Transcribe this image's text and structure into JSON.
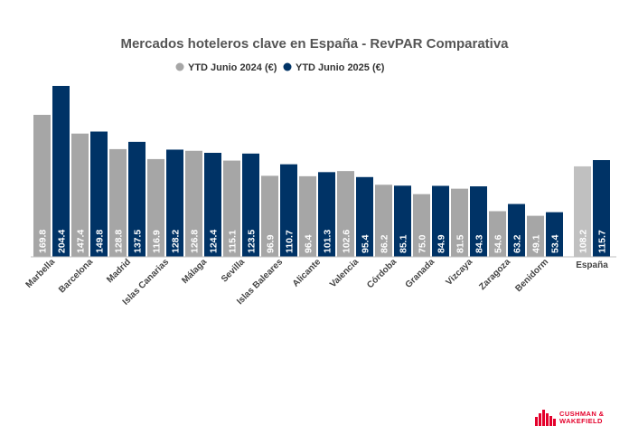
{
  "chart_data": {
    "type": "bar",
    "title": "Mercados hoteleros clave en España - RevPAR Comparativa",
    "categories": [
      "Marbella",
      "Barcelona",
      "Madrid",
      "Islas Canarias",
      "Málaga",
      "Sevilla",
      "Islas Baleares",
      "Alicante",
      "Valencia",
      "Córdoba",
      "Granada",
      "Vizcaya",
      "Zaragoza",
      "Benidorm",
      "España"
    ],
    "series": [
      {
        "name": "YTD Junio 2024 (€)",
        "color": "#a6a6a6",
        "values": [
          169.8,
          147.4,
          128.8,
          116.9,
          126.8,
          115.1,
          96.9,
          96.4,
          102.6,
          86.2,
          75.0,
          81.5,
          54.6,
          49.1,
          108.2
        ]
      },
      {
        "name": "YTD Junio 2025 (€)",
        "color": "#003366",
        "values": [
          204.4,
          149.8,
          137.5,
          128.2,
          124.4,
          123.5,
          110.7,
          101.3,
          95.4,
          85.1,
          84.9,
          84.3,
          63.2,
          53.4,
          115.7
        ]
      }
    ],
    "highlight": {
      "category": "España",
      "color_2024": "#c0c0c0",
      "color_2025": "#003366"
    },
    "legend_position": "top",
    "grid": false,
    "ylim": [
      0,
      210
    ],
    "xlabel": "",
    "ylabel": ""
  },
  "logo": {
    "line1": "CUSHMAN &",
    "line2": "WAKEFIELD",
    "icon": "cushman-wakefield-bars-icon",
    "color": "#e4002b"
  }
}
